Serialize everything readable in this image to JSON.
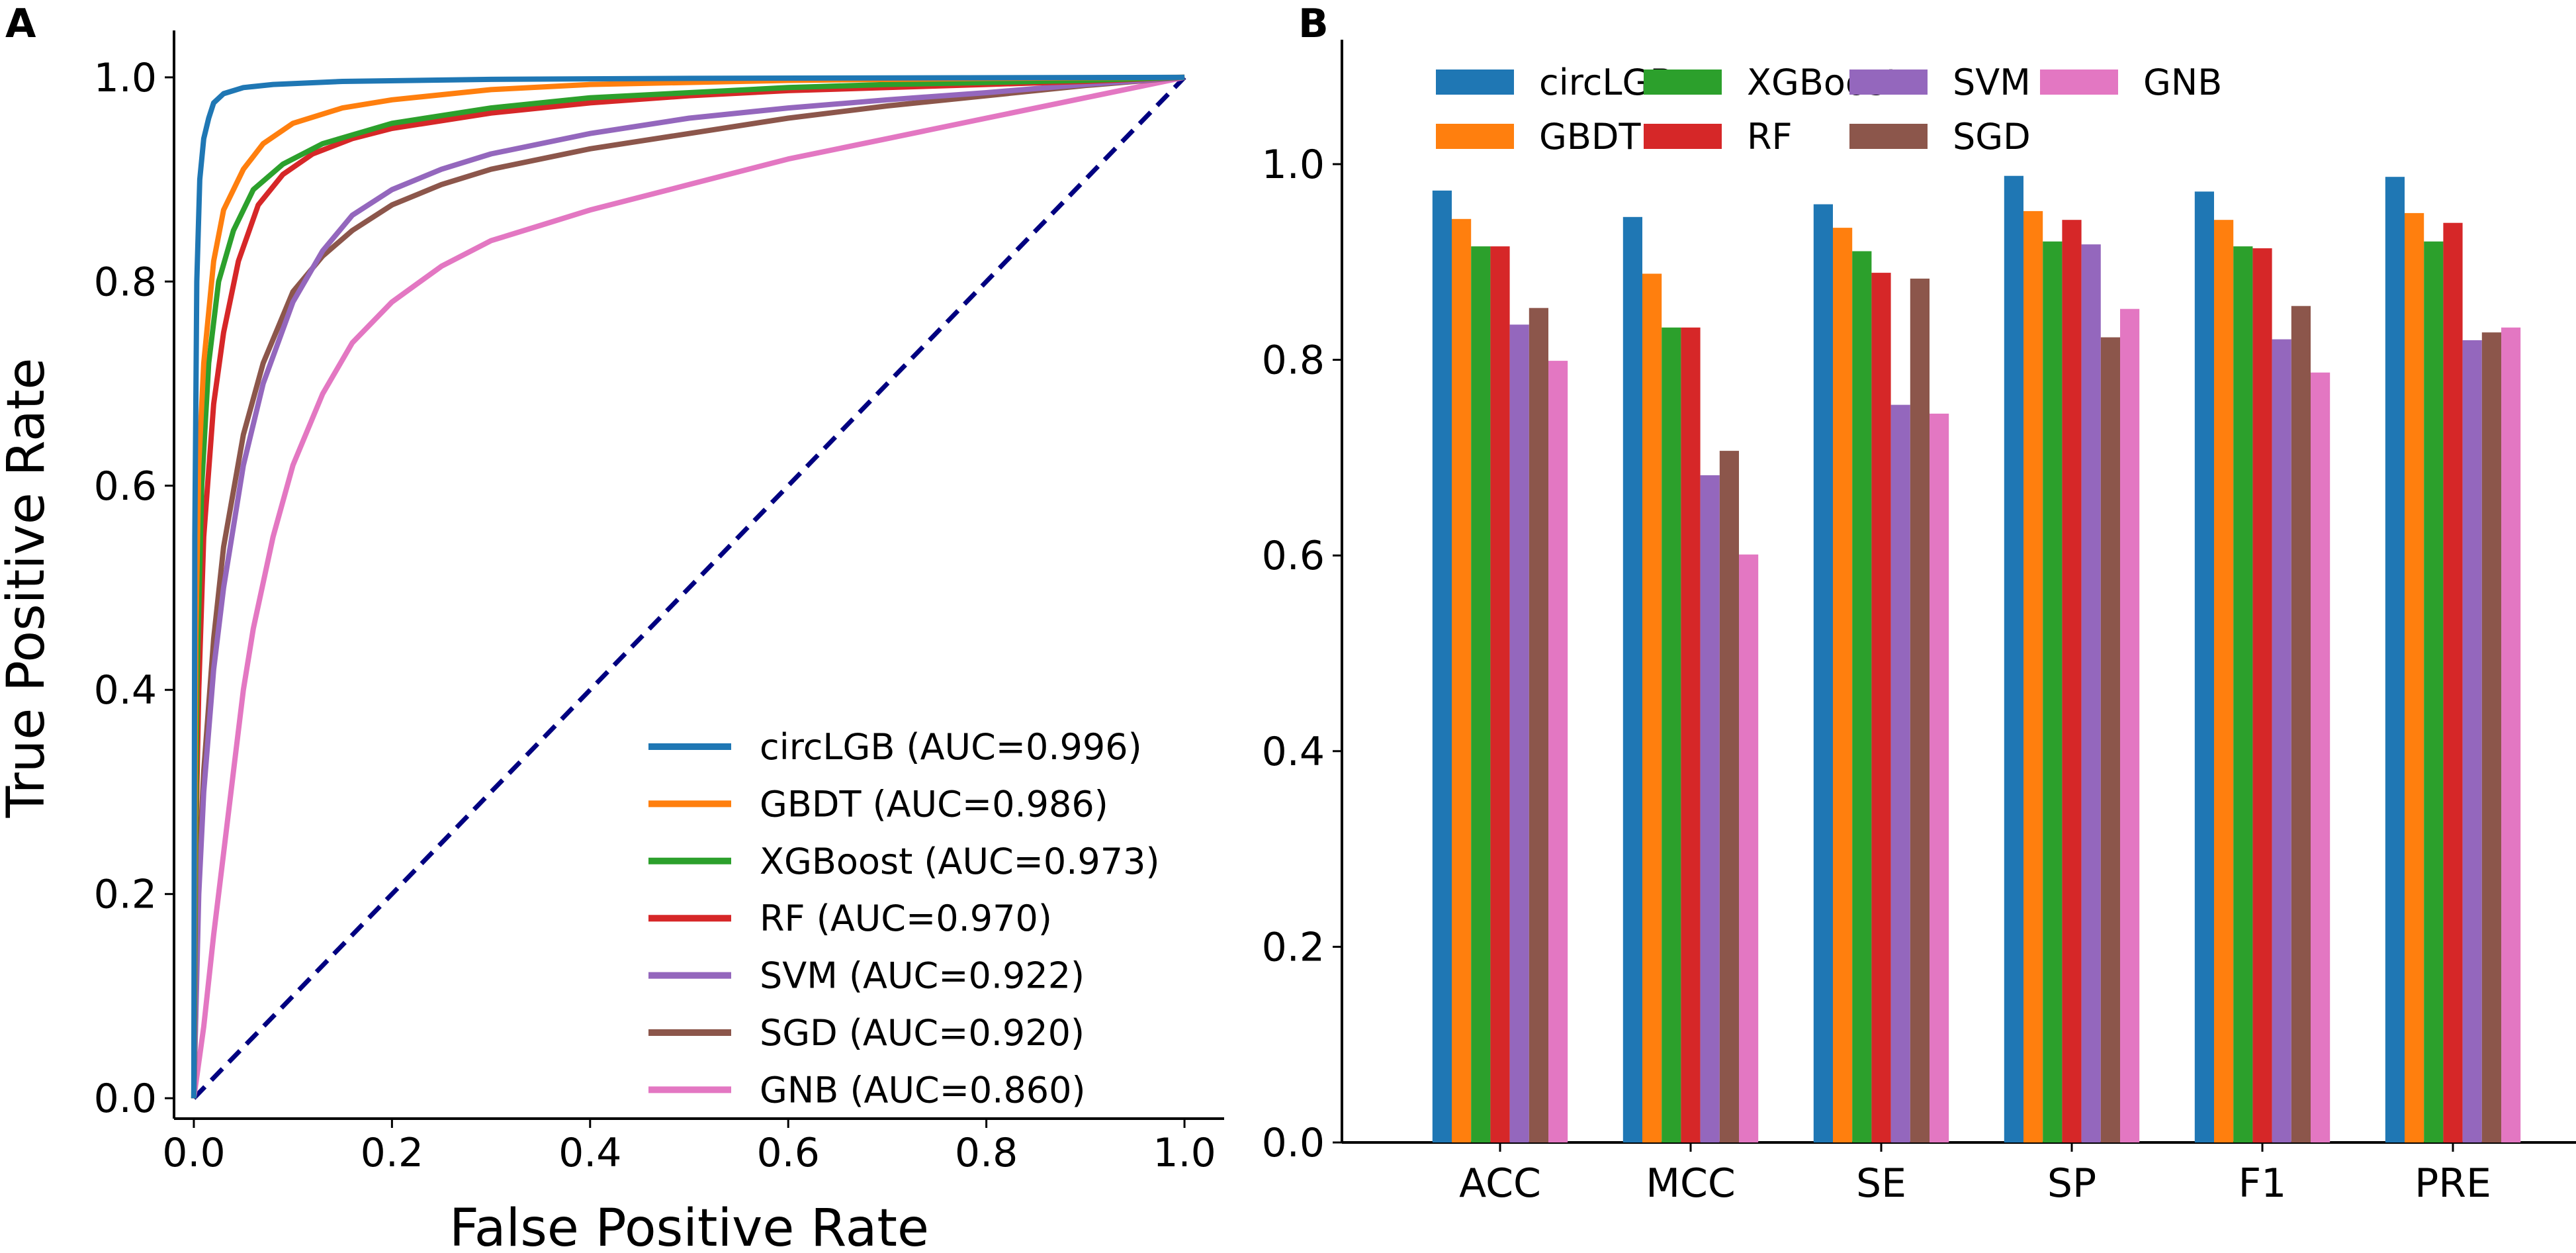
{
  "panel_labels": {
    "a": "A",
    "b": "B"
  },
  "chart_data": [
    {
      "type": "line",
      "title": "",
      "xlabel": "False Positive Rate",
      "ylabel": "True Positive Rate",
      "xlim": [
        0,
        1
      ],
      "ylim": [
        0,
        1
      ],
      "xticks": [
        "0.0",
        "0.2",
        "0.4",
        "0.6",
        "0.8",
        "1.0"
      ],
      "yticks": [
        "0.0",
        "0.2",
        "0.4",
        "0.6",
        "0.8",
        "1.0"
      ],
      "legend_position": "lower-right",
      "diagonal": {
        "style": "dashed",
        "color": "#000080",
        "points": [
          [
            0,
            0
          ],
          [
            1,
            1
          ]
        ]
      },
      "series": [
        {
          "name": "circLGB",
          "legend": "circLGB (AUC=0.996)",
          "color": "#1f77b4",
          "points": [
            [
              0,
              0
            ],
            [
              0.001,
              0.55
            ],
            [
              0.003,
              0.8
            ],
            [
              0.006,
              0.9
            ],
            [
              0.01,
              0.94
            ],
            [
              0.015,
              0.96
            ],
            [
              0.02,
              0.975
            ],
            [
              0.03,
              0.984
            ],
            [
              0.05,
              0.99
            ],
            [
              0.08,
              0.993
            ],
            [
              0.15,
              0.996
            ],
            [
              0.3,
              0.998
            ],
            [
              0.5,
              0.999
            ],
            [
              1.0,
              1.0
            ]
          ]
        },
        {
          "name": "GBDT",
          "legend": "GBDT (AUC=0.986)",
          "color": "#ff7f0e",
          "points": [
            [
              0,
              0
            ],
            [
              0.002,
              0.45
            ],
            [
              0.005,
              0.62
            ],
            [
              0.01,
              0.72
            ],
            [
              0.02,
              0.82
            ],
            [
              0.03,
              0.87
            ],
            [
              0.05,
              0.91
            ],
            [
              0.07,
              0.935
            ],
            [
              0.1,
              0.955
            ],
            [
              0.15,
              0.97
            ],
            [
              0.2,
              0.978
            ],
            [
              0.3,
              0.988
            ],
            [
              0.4,
              0.993
            ],
            [
              0.6,
              0.997
            ],
            [
              0.8,
              0.999
            ],
            [
              1.0,
              1.0
            ]
          ]
        },
        {
          "name": "XGBoost",
          "legend": "XGBoost (AUC=0.973)",
          "color": "#2ca02c",
          "points": [
            [
              0,
              0
            ],
            [
              0.003,
              0.4
            ],
            [
              0.008,
              0.6
            ],
            [
              0.015,
              0.72
            ],
            [
              0.025,
              0.8
            ],
            [
              0.04,
              0.85
            ],
            [
              0.06,
              0.89
            ],
            [
              0.09,
              0.915
            ],
            [
              0.13,
              0.935
            ],
            [
              0.2,
              0.955
            ],
            [
              0.3,
              0.97
            ],
            [
              0.4,
              0.98
            ],
            [
              0.5,
              0.985
            ],
            [
              0.6,
              0.99
            ],
            [
              0.7,
              0.993
            ],
            [
              0.8,
              0.995
            ],
            [
              0.9,
              0.997
            ],
            [
              1.0,
              1.0
            ]
          ]
        },
        {
          "name": "RF",
          "legend": "RF (AUC=0.970)",
          "color": "#d62728",
          "points": [
            [
              0,
              0
            ],
            [
              0.002,
              0.25
            ],
            [
              0.005,
              0.4
            ],
            [
              0.01,
              0.55
            ],
            [
              0.02,
              0.68
            ],
            [
              0.03,
              0.75
            ],
            [
              0.045,
              0.82
            ],
            [
              0.065,
              0.875
            ],
            [
              0.09,
              0.905
            ],
            [
              0.12,
              0.925
            ],
            [
              0.16,
              0.94
            ],
            [
              0.2,
              0.95
            ],
            [
              0.3,
              0.965
            ],
            [
              0.4,
              0.975
            ],
            [
              0.5,
              0.982
            ],
            [
              0.6,
              0.987
            ],
            [
              0.7,
              0.99
            ],
            [
              0.8,
              0.993
            ],
            [
              0.9,
              0.996
            ],
            [
              1.0,
              1.0
            ]
          ]
        },
        {
          "name": "SVM",
          "legend": "SVM (AUC=0.922)",
          "color": "#9467bd",
          "points": [
            [
              0,
              0
            ],
            [
              0.005,
              0.2
            ],
            [
              0.01,
              0.3
            ],
            [
              0.02,
              0.42
            ],
            [
              0.03,
              0.5
            ],
            [
              0.05,
              0.62
            ],
            [
              0.07,
              0.7
            ],
            [
              0.1,
              0.78
            ],
            [
              0.13,
              0.83
            ],
            [
              0.16,
              0.865
            ],
            [
              0.2,
              0.89
            ],
            [
              0.25,
              0.91
            ],
            [
              0.3,
              0.925
            ],
            [
              0.4,
              0.945
            ],
            [
              0.5,
              0.96
            ],
            [
              0.6,
              0.97
            ],
            [
              0.7,
              0.978
            ],
            [
              0.8,
              0.985
            ],
            [
              0.9,
              0.993
            ],
            [
              1.0,
              1.0
            ]
          ]
        },
        {
          "name": "SGD",
          "legend": "SGD (AUC=0.920)",
          "color": "#8c564b",
          "points": [
            [
              0,
              0
            ],
            [
              0.005,
              0.22
            ],
            [
              0.01,
              0.32
            ],
            [
              0.02,
              0.45
            ],
            [
              0.03,
              0.54
            ],
            [
              0.05,
              0.65
            ],
            [
              0.07,
              0.72
            ],
            [
              0.1,
              0.79
            ],
            [
              0.13,
              0.825
            ],
            [
              0.16,
              0.85
            ],
            [
              0.2,
              0.875
            ],
            [
              0.25,
              0.895
            ],
            [
              0.3,
              0.91
            ],
            [
              0.4,
              0.93
            ],
            [
              0.5,
              0.945
            ],
            [
              0.6,
              0.96
            ],
            [
              0.7,
              0.972
            ],
            [
              0.8,
              0.982
            ],
            [
              0.9,
              0.992
            ],
            [
              1.0,
              1.0
            ]
          ]
        },
        {
          "name": "GNB",
          "legend": "GNB (AUC=0.860)",
          "color": "#e377c2",
          "points": [
            [
              0,
              0
            ],
            [
              0.01,
              0.07
            ],
            [
              0.02,
              0.16
            ],
            [
              0.03,
              0.24
            ],
            [
              0.04,
              0.32
            ],
            [
              0.05,
              0.4
            ],
            [
              0.06,
              0.46
            ],
            [
              0.08,
              0.55
            ],
            [
              0.1,
              0.62
            ],
            [
              0.13,
              0.69
            ],
            [
              0.16,
              0.74
            ],
            [
              0.2,
              0.78
            ],
            [
              0.25,
              0.815
            ],
            [
              0.3,
              0.84
            ],
            [
              0.35,
              0.855
            ],
            [
              0.4,
              0.87
            ],
            [
              0.5,
              0.895
            ],
            [
              0.6,
              0.92
            ],
            [
              0.7,
              0.94
            ],
            [
              0.8,
              0.96
            ],
            [
              0.9,
              0.98
            ],
            [
              1.0,
              1.0
            ]
          ]
        }
      ]
    },
    {
      "type": "bar",
      "title": "",
      "xlabel": "",
      "ylabel": "",
      "ylim": [
        0,
        1.13
      ],
      "yticks": [
        "0.0",
        "0.2",
        "0.4",
        "0.6",
        "0.8",
        "1.0"
      ],
      "legend_position": "top",
      "categories": [
        "ACC",
        "MCC",
        "SE",
        "SP",
        "F1",
        "PRE"
      ],
      "series": [
        {
          "name": "circLGB",
          "color": "#1f77b4",
          "values": [
            0.973,
            0.946,
            0.959,
            0.988,
            0.972,
            0.987
          ]
        },
        {
          "name": "GBDT",
          "color": "#ff7f0e",
          "values": [
            0.944,
            0.888,
            0.935,
            0.952,
            0.943,
            0.95
          ]
        },
        {
          "name": "XGBoost",
          "color": "#2ca02c",
          "values": [
            0.916,
            0.833,
            0.911,
            0.921,
            0.916,
            0.921
          ]
        },
        {
          "name": "RF",
          "color": "#d62728",
          "values": [
            0.916,
            0.833,
            0.889,
            0.943,
            0.914,
            0.94
          ]
        },
        {
          "name": "SVM",
          "color": "#9467bd",
          "values": [
            0.836,
            0.682,
            0.754,
            0.918,
            0.821,
            0.82
          ]
        },
        {
          "name": "SGD",
          "color": "#8c564b",
          "values": [
            0.853,
            0.707,
            0.883,
            0.823,
            0.855,
            0.828
          ]
        },
        {
          "name": "GNB",
          "color": "#e377c2",
          "values": [
            0.799,
            0.601,
            0.745,
            0.852,
            0.787,
            0.833
          ]
        }
      ]
    }
  ]
}
